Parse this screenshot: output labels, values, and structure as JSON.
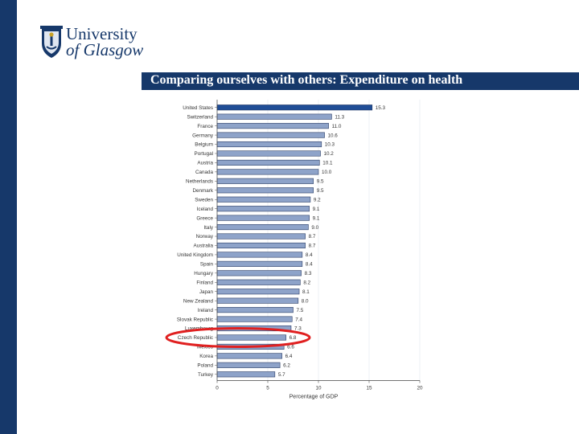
{
  "logo": {
    "line1": "University",
    "line2": "of Glasgow"
  },
  "slide": {
    "title": "Comparing ourselves with others: Expenditure on health"
  },
  "colors": {
    "brand_navy": "#16386a",
    "bar_fill": "#8ea3c9",
    "bar_highlight": "#1f4d96",
    "bar_stroke": "#2c3e66",
    "highlight_ellipse": "#e02020"
  },
  "chart_data": {
    "type": "bar",
    "orientation": "horizontal",
    "title": "",
    "xlabel": "Percentage of GDP",
    "ylabel": "",
    "xlim": [
      0,
      20
    ],
    "xticks": [
      0,
      5,
      10,
      15,
      20
    ],
    "xtick_labels": [
      "0",
      "5",
      "10",
      "15",
      "20"
    ],
    "categories": [
      "United States",
      "Switzerland",
      "France",
      "Germany",
      "Belgium",
      "Portugal",
      "Austria",
      "Canada",
      "Netherlands",
      "Denmark",
      "Sweden",
      "Iceland",
      "Greece",
      "Italy",
      "Norway",
      "Australia",
      "United Kingdom",
      "Spain",
      "Hungary",
      "Finland",
      "Japan",
      "New Zealand",
      "Ireland",
      "Slovak Republic",
      "Luxembourg",
      "Czech Republic",
      "Mexico",
      "Korea",
      "Poland",
      "Turkey"
    ],
    "values": [
      15.3,
      11.3,
      11.0,
      10.6,
      10.3,
      10.2,
      10.1,
      10.0,
      9.5,
      9.5,
      9.2,
      9.1,
      9.1,
      9.0,
      8.7,
      8.7,
      8.4,
      8.4,
      8.3,
      8.2,
      8.1,
      8.0,
      7.5,
      7.4,
      7.3,
      6.8,
      6.6,
      6.4,
      6.2,
      5.7
    ],
    "value_labels": [
      "15.3",
      "11.3",
      "11.0",
      "10.6",
      "10.3",
      "10.2",
      "10.1",
      "10.0",
      "9.5",
      "9.5",
      "9.2",
      "9.1",
      "9.1",
      "9.0",
      "8.7",
      "8.7",
      "8.4",
      "8.4",
      "8.3",
      "8.2",
      "8.1",
      "8.0",
      "7.5",
      "7.4",
      "7.3",
      "6.8",
      "6.6",
      "6.4",
      "6.2",
      "5.7"
    ],
    "highlighted_category": "Czech Republic",
    "emphasized_category": "United States"
  }
}
